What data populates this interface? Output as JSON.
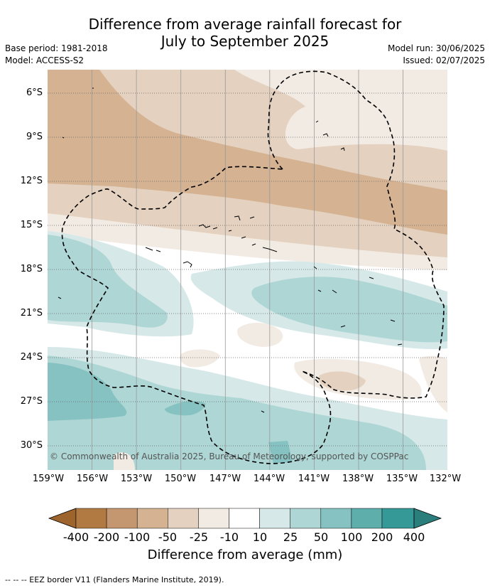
{
  "title_line1": "Difference from average rainfall forecast for",
  "title_line2": "July to September 2025",
  "base_period": "Base period: 1981-2018",
  "model": "Model: ACCESS-S2",
  "model_run": "Model run: 30/06/2025",
  "issued": "Issued: 02/07/2025",
  "copyright": "© Commonwealth of Australia 2025, Bureau of Meteorology, supported by COSPPac",
  "lat_labels": [
    "6°S",
    "9°S",
    "12°S",
    "15°S",
    "18°S",
    "21°S",
    "24°S",
    "27°S",
    "30°S"
  ],
  "lon_labels": [
    "159°W",
    "156°W",
    "153°W",
    "150°W",
    "147°W",
    "144°W",
    "141°W",
    "138°W",
    "135°W",
    "132°W"
  ],
  "colorbar": {
    "title": "Difference from average (mm)",
    "ticks": [
      "-400",
      "-200",
      "-100",
      "-50",
      "-25",
      "-10",
      "10",
      "25",
      "50",
      "100",
      "200",
      "400"
    ],
    "colors": [
      "#9d642e",
      "#b27a43",
      "#c49770",
      "#d4b292",
      "#e4d1bf",
      "#f2ebe3",
      "#ffffff",
      "#d6e9e8",
      "#add6d5",
      "#86c2c1",
      "#5eaeac",
      "#359997",
      "#2a7f7d"
    ]
  },
  "footnote": "--  --  -- EEZ border V11 (Flanders Marine Institute, 2019)."
}
